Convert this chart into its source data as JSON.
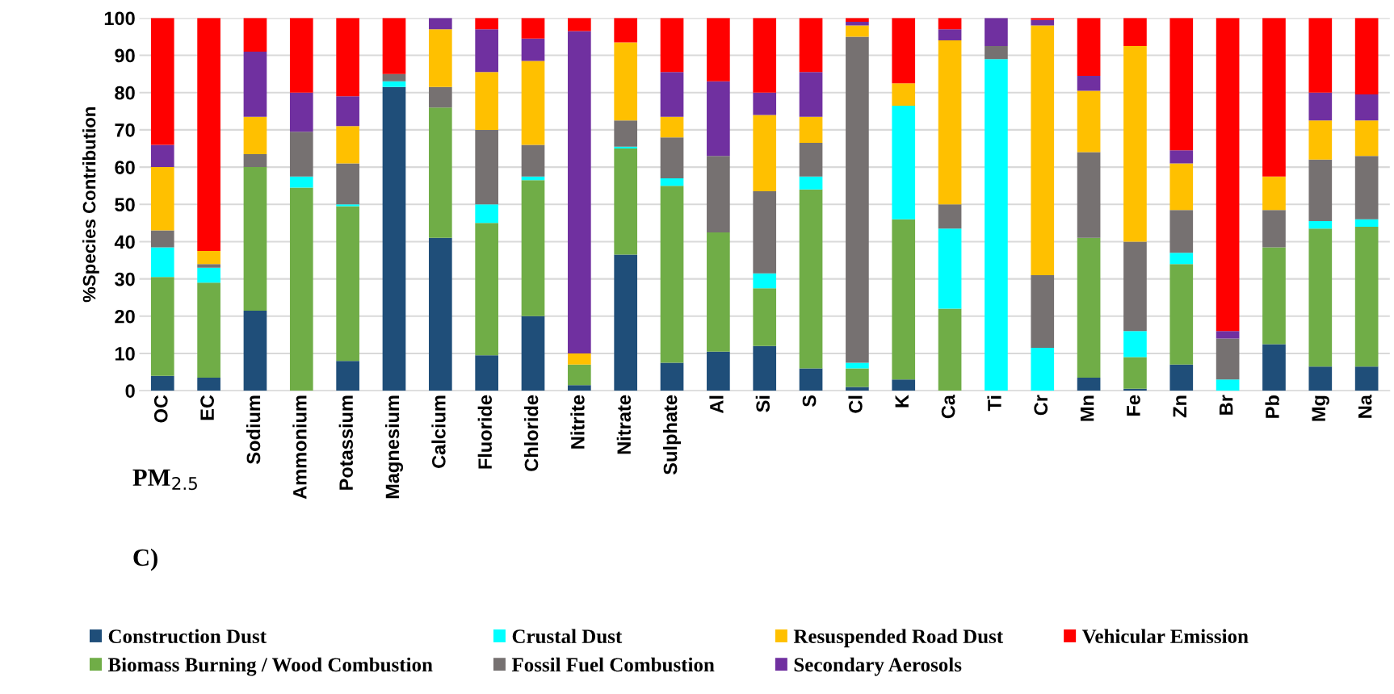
{
  "chart_data": {
    "type": "bar",
    "stacked": true,
    "ylabel": "%Species Contribution",
    "categories": [
      "OC",
      "EC",
      "Sodium",
      "Ammonium",
      "Potassium",
      "Magnesium",
      "Calcium",
      "Fluoride",
      "Chloride",
      "Nitrite",
      "Nitrate",
      "Sulphate",
      "Al",
      "Si",
      "S",
      "Cl",
      "K",
      "Ca",
      "Ti",
      "Cr",
      "Mn",
      "Fe",
      "Zn",
      "Br",
      "Pb",
      "Mg",
      "Na"
    ],
    "series": [
      {
        "name": "Construction Dust",
        "color": "#1f4e79",
        "values": [
          4,
          3.5,
          21.5,
          0,
          8,
          81.5,
          41,
          9.5,
          20,
          1.5,
          36.5,
          7.5,
          10.5,
          12,
          6,
          1,
          3,
          0,
          0,
          0,
          3.5,
          0.5,
          7,
          0,
          12.5,
          6.5,
          6.5
        ]
      },
      {
        "name": "Biomass Burning / Wood Combustion",
        "color": "#70ad47",
        "values": [
          26.5,
          25.5,
          38.5,
          54.5,
          41.5,
          0,
          35,
          35.5,
          36.5,
          5.5,
          28.5,
          47.5,
          32,
          15.5,
          48,
          5,
          43,
          22,
          0,
          0,
          37.5,
          8.5,
          27,
          0,
          26,
          37,
          37.5
        ]
      },
      {
        "name": "Crustal Dust",
        "color": "#00ffff",
        "values": [
          8,
          4,
          0,
          3,
          0.5,
          1.5,
          0,
          5,
          1,
          0,
          0.5,
          2,
          0,
          4,
          3.5,
          1.5,
          30.5,
          21.5,
          89,
          11.5,
          0,
          7,
          3,
          3,
          0,
          2,
          2
        ]
      },
      {
        "name": "Fossil Fuel Combustion",
        "color": "#767171",
        "values": [
          4.5,
          1,
          3.5,
          12,
          11,
          2,
          5.5,
          20,
          8.5,
          0,
          7,
          11,
          20.5,
          22,
          9,
          87.5,
          0,
          6.5,
          3.5,
          19.5,
          23,
          24,
          11.5,
          11,
          10,
          16.5,
          17
        ]
      },
      {
        "name": "Resuspended Road Dust",
        "color": "#ffc000",
        "values": [
          17,
          3.5,
          10,
          0,
          10,
          0,
          15.5,
          15.5,
          22.5,
          3,
          21,
          5.5,
          0,
          20.5,
          7,
          3,
          6,
          44,
          0,
          67,
          16.5,
          52.5,
          12.5,
          0,
          9,
          10.5,
          9.5
        ]
      },
      {
        "name": "Secondary Aerosols",
        "color": "#7030a0",
        "values": [
          6,
          0,
          17.5,
          10.5,
          8,
          0,
          3,
          11.5,
          6,
          86.5,
          0,
          12,
          20,
          6,
          12,
          1,
          0,
          3,
          7.5,
          1.5,
          4,
          0,
          3.5,
          2,
          0,
          7.5,
          7
        ]
      },
      {
        "name": "Vehicular Emission",
        "color": "#ff0000",
        "values": [
          34,
          62.5,
          9,
          20,
          21,
          15,
          0,
          3,
          5.5,
          3.5,
          6.5,
          14.5,
          17,
          20,
          14.5,
          1,
          17.5,
          3,
          0,
          0.5,
          15.5,
          7.5,
          35.5,
          84,
          42.5,
          20,
          20.5
        ]
      }
    ],
    "ylim": [
      0,
      100
    ],
    "yticks": [
      0,
      10,
      20,
      30,
      40,
      50,
      60,
      70,
      80,
      90,
      100
    ],
    "grid": "y",
    "legend": "bottom",
    "annotations": [
      "PM$_{2.5}$",
      "C)"
    ]
  }
}
